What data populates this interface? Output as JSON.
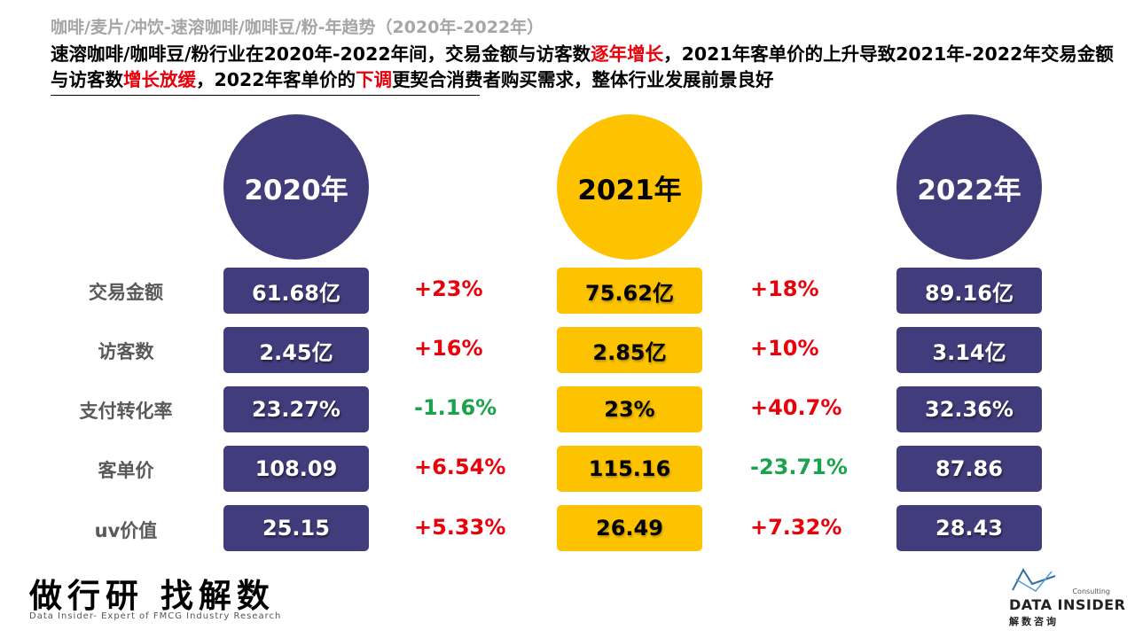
{
  "header": {
    "subtitle": "咖啡/麦片/冲饮-速溶咖啡/咖啡豆/粉-年趋势（2020年-2022年）",
    "headline": {
      "p1": "速溶咖啡/咖啡豆/粉行业在2020年-2022年间，交易金额与访客数",
      "h1": "逐年增长",
      "p2": "，2021年客单价的上升导致2021年-2022年交易金额与访客数",
      "h2": "增长放缓",
      "p3": "，2022年客单价的",
      "h3": "下调",
      "p4": "更契合消费者购买需求，整体行业发展前景良好"
    }
  },
  "years": [
    "2020年",
    "2021年",
    "2022年"
  ],
  "colors": {
    "purple": "#413d7c",
    "gold": "#fdc200",
    "up": "#e8000b",
    "down": "#1aa34a"
  },
  "rows": [
    {
      "label": "交易金额",
      "v2020": "61.68亿",
      "c1": "+23%",
      "v2021": "75.62亿",
      "c2": "+18%",
      "v2022": "89.16亿"
    },
    {
      "label": "访客数",
      "v2020": "2.45亿",
      "c1": "+16%",
      "v2021": "2.85亿",
      "c2": "+10%",
      "v2022": "3.14亿"
    },
    {
      "label": "支付转化率",
      "v2020": "23.27%",
      "c1": "-1.16%",
      "v2021": "23%",
      "c2": "+40.7%",
      "v2022": "32.36%"
    },
    {
      "label": "客单价",
      "v2020": "108.09",
      "c1": "+6.54%",
      "v2021": "115.16",
      "c2": "-23.71%",
      "v2022": "87.86"
    },
    {
      "label": "uv价值",
      "v2020": "25.15",
      "c1": "+5.33%",
      "v2021": "26.49",
      "c2": "+7.32%",
      "v2022": "28.43"
    }
  ],
  "footer": {
    "slogan": "做行研 找解数",
    "sub": "Data Insider- Expert of FMCG Industry Research",
    "logo_consult": "Consulting",
    "logo_name": "DATA INSIDER",
    "logo_cn": "解数咨询"
  }
}
